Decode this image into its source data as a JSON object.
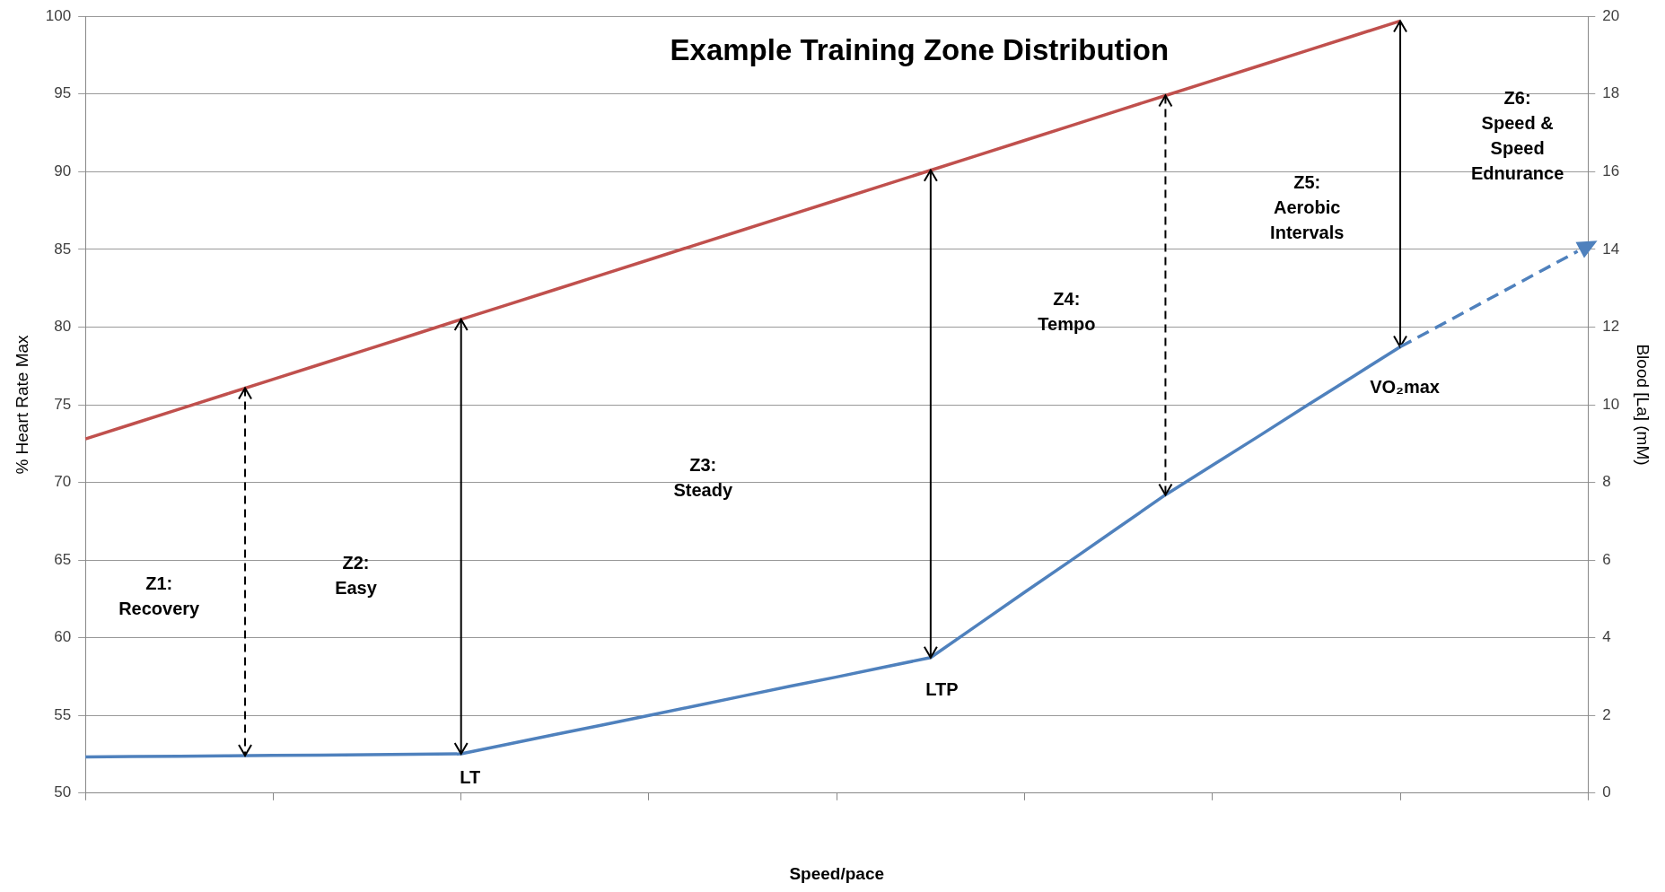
{
  "chart_data": {
    "type": "line",
    "title": "Example Training Zone Distribution",
    "xlabel": "Speed/pace",
    "ylabel": "% Heart Rate Max",
    "y2label": "Blood [La] (mM)",
    "categories": [
      null,
      null,
      null,
      null,
      null,
      null,
      null,
      null,
      null,
      null,
      null,
      null,
      null,
      null,
      null,
      null,
      null,
      null,
      null,
      null,
      null,
      null,
      null,
      null,
      null,
      null,
      null,
      null,
      null,
      null,
      null,
      null,
      null
    ],
    "ylim": [
      50,
      100
    ],
    "yticks": [
      50,
      55,
      60,
      65,
      70,
      75,
      80,
      85,
      90,
      95,
      100
    ],
    "y2lim": [
      0,
      20
    ],
    "y2ticks": [
      0,
      2,
      4,
      6,
      8,
      10,
      12,
      14,
      16,
      18,
      20
    ],
    "grid": "y",
    "legend": false,
    "marker": "none",
    "series": [
      {
        "color": "#c0504d",
        "values": [
          72.8,
          73.76,
          74.72,
          75.68,
          76.64,
          77.6,
          78.56,
          79.52,
          80.49,
          81.45,
          82.41,
          83.37,
          84.33,
          85.29,
          86.25,
          87.21,
          88.17,
          89.13,
          90.09,
          91.05,
          92.01,
          92.97,
          93.94,
          94.9,
          95.86,
          96.82,
          97.78,
          98.74,
          99.7,
          null,
          null,
          null,
          null
        ]
      },
      {
        "color": "#4f81bd",
        "axis": "y2",
        "values": [
          0.93,
          0.94,
          0.95,
          0.96,
          0.97,
          0.98,
          0.99,
          1.0,
          1.01,
          1.26,
          1.51,
          1.75,
          2.0,
          2.25,
          2.5,
          2.75,
          2.99,
          3.24,
          3.49,
          4.33,
          5.17,
          6.0,
          6.84,
          7.68,
          8.44,
          9.2,
          9.97,
          10.73,
          11.49,
          null,
          null,
          null,
          null
        ]
      }
    ],
    "annotations": [
      "Z1:\nRecovery",
      "Z2:\nEasy",
      "Z3:\nSteady",
      "Z4:\nTempo",
      "Z5:\nAerobic\nIntervals",
      "Z6:\nSpeed &\nSpeed\nEdnurance",
      "LT",
      "LTP",
      "VO₂max"
    ]
  }
}
